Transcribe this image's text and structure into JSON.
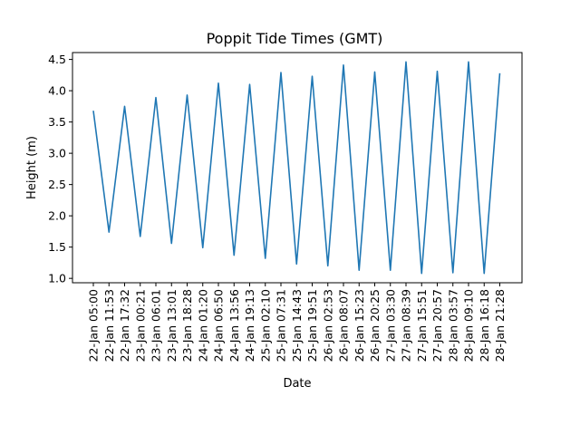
{
  "chart_data": {
    "type": "line",
    "title": "Poppit Tide Times (GMT)",
    "xlabel": "Date",
    "ylabel": "Height (m)",
    "ylim": [
      0.93,
      4.61
    ],
    "yticks": [
      "1.0",
      "1.5",
      "2.0",
      "2.5",
      "3.0",
      "3.5",
      "4.0",
      "4.5"
    ],
    "grid": false,
    "color": "#1f77b4",
    "categories": [
      "22-Jan 05:00",
      "22-Jan 11:53",
      "22-Jan 17:32",
      "23-Jan 00:21",
      "23-Jan 06:01",
      "23-Jan 13:01",
      "23-Jan 18:28",
      "24-Jan 01:20",
      "24-Jan 06:50",
      "24-Jan 13:56",
      "24-Jan 19:13",
      "25-Jan 02:10",
      "25-Jan 07:31",
      "25-Jan 14:43",
      "25-Jan 19:51",
      "26-Jan 02:53",
      "26-Jan 08:07",
      "26-Jan 15:23",
      "26-Jan 20:25",
      "27-Jan 03:30",
      "27-Jan 08:39",
      "27-Jan 15:51",
      "27-Jan 20:57",
      "28-Jan 03:57",
      "28-Jan 09:10",
      "28-Jan 16:18",
      "28-Jan 21:28"
    ],
    "series": [
      {
        "values": [
          3.68,
          1.74,
          3.75,
          1.67,
          3.89,
          1.56,
          3.93,
          1.49,
          4.12,
          1.37,
          4.1,
          1.32,
          4.29,
          1.23,
          4.23,
          1.2,
          4.41,
          1.13,
          4.3,
          1.13,
          4.46,
          1.08,
          4.31,
          1.09,
          4.46,
          1.08,
          4.28
        ]
      }
    ]
  }
}
